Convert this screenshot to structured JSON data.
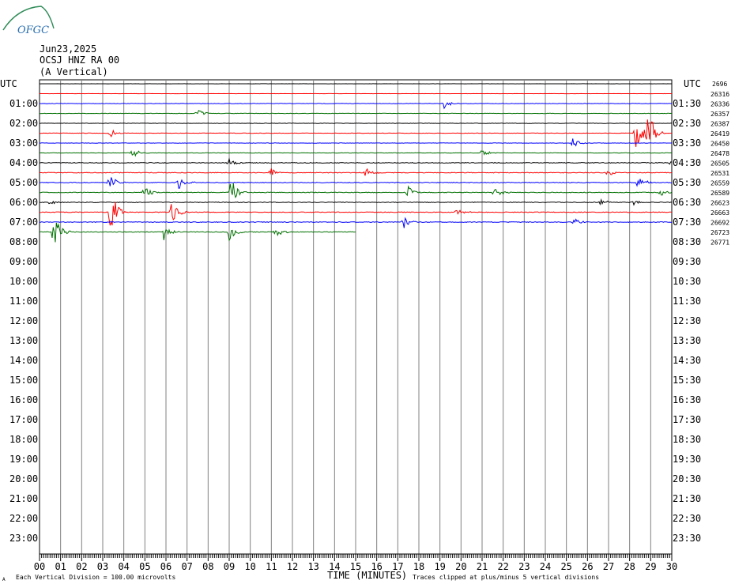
{
  "logo": {
    "text": "OFGC",
    "color": "#2a6fb0",
    "arc_color": "#2e8b57"
  },
  "header": {
    "date": "Jun23,2025",
    "station": "OCSJ HNZ RA 00",
    "component": "(A Vertical)"
  },
  "axes": {
    "utc_left": "UTC",
    "utc_right": "UTC",
    "x_title": "TIME (MINUTES)",
    "right_top_label": "2696"
  },
  "footer": {
    "scale": "Each Vertical Division = 100.00 microvolts",
    "clip": "Traces clipped at plus/minus 5 vertical divisions",
    "corner_mark": "A"
  },
  "chart_data": {
    "type": "line",
    "title": "",
    "trace_colors": [
      "#000000",
      "#ff0000",
      "#0000ff",
      "#007000"
    ],
    "grid_color": "#808080",
    "x_ticks": [
      "00",
      "01",
      "02",
      "03",
      "04",
      "05",
      "06",
      "07",
      "08",
      "09",
      "10",
      "11",
      "12",
      "13",
      "14",
      "15",
      "16",
      "17",
      "18",
      "19",
      "20",
      "21",
      "22",
      "23",
      "24",
      "25",
      "26",
      "27",
      "28",
      "29",
      "30"
    ],
    "x_range_minutes": [
      0,
      30
    ],
    "left_hour_labels": [
      "01:00",
      "02:00",
      "03:00",
      "04:00",
      "05:00",
      "06:00",
      "07:00",
      "08:00",
      "09:00",
      "10:00",
      "11:00",
      "12:00",
      "13:00",
      "14:00",
      "15:00",
      "16:00",
      "17:00",
      "18:00",
      "19:00",
      "20:00",
      "21:00",
      "22:00",
      "23:00"
    ],
    "right_hour_labels": [
      "01:30",
      "02:30",
      "03:30",
      "04:30",
      "05:30",
      "06:30",
      "07:30",
      "08:30",
      "09:30",
      "10:30",
      "11:30",
      "12:30",
      "13:30",
      "14:30",
      "15:30",
      "16:30",
      "17:30",
      "18:30",
      "19:30",
      "20:30",
      "21:30",
      "22:30",
      "23:30"
    ],
    "trace_counts": [
      "26316",
      "26336",
      "26357",
      "26387",
      "26419",
      "26450",
      "26478",
      "26505",
      "26531",
      "26559",
      "26589",
      "26623",
      "26663",
      "26692",
      "26723",
      "26771"
    ],
    "traces_full_count": 16,
    "last_trace_end_minute": 15,
    "events": [
      {
        "trace": 2,
        "minute": 19.2,
        "amp": 0.6
      },
      {
        "trace": 3,
        "minute": 7.5,
        "amp": 0.5
      },
      {
        "trace": 5,
        "minute": 3.4,
        "amp": 0.4
      },
      {
        "trace": 5,
        "minute": 28.3,
        "amp": 2.2
      },
      {
        "trace": 5,
        "minute": 28.9,
        "amp": 2.6
      },
      {
        "trace": 6,
        "minute": 25.3,
        "amp": 0.6
      },
      {
        "trace": 7,
        "minute": 4.4,
        "amp": 0.6
      },
      {
        "trace": 7,
        "minute": 21.0,
        "amp": 0.4
      },
      {
        "trace": 8,
        "minute": 9.0,
        "amp": 0.5
      },
      {
        "trace": 8,
        "minute": 30.0,
        "amp": 0.8
      },
      {
        "trace": 9,
        "minute": 11.0,
        "amp": 0.5
      },
      {
        "trace": 9,
        "minute": 15.5,
        "amp": 0.5
      },
      {
        "trace": 9,
        "minute": 27.0,
        "amp": 0.4
      },
      {
        "trace": 10,
        "minute": 3.3,
        "amp": 1.0
      },
      {
        "trace": 10,
        "minute": 6.6,
        "amp": 0.8
      },
      {
        "trace": 10,
        "minute": 28.4,
        "amp": 1.0
      },
      {
        "trace": 11,
        "minute": 9.1,
        "amp": 1.6
      },
      {
        "trace": 11,
        "minute": 5.0,
        "amp": 0.6
      },
      {
        "trace": 11,
        "minute": 17.5,
        "amp": 0.6
      },
      {
        "trace": 11,
        "minute": 21.6,
        "amp": 0.6
      },
      {
        "trace": 11,
        "minute": 29.5,
        "amp": 0.4
      },
      {
        "trace": 12,
        "minute": 0.5,
        "amp": 0.3
      },
      {
        "trace": 12,
        "minute": 26.6,
        "amp": 0.4
      },
      {
        "trace": 12,
        "minute": 28.2,
        "amp": 0.3
      },
      {
        "trace": 13,
        "minute": 3.4,
        "amp": 2.6
      },
      {
        "trace": 13,
        "minute": 6.3,
        "amp": 1.4
      },
      {
        "trace": 13,
        "minute": 19.8,
        "amp": 0.5
      },
      {
        "trace": 14,
        "minute": 17.3,
        "amp": 0.6
      },
      {
        "trace": 14,
        "minute": 25.4,
        "amp": 0.4
      },
      {
        "trace": 15,
        "minute": 0.7,
        "amp": 1.8
      },
      {
        "trace": 15,
        "minute": 5.9,
        "amp": 0.8
      },
      {
        "trace": 15,
        "minute": 9.0,
        "amp": 0.9
      },
      {
        "trace": 15,
        "minute": 11.2,
        "amp": 0.6
      }
    ]
  }
}
